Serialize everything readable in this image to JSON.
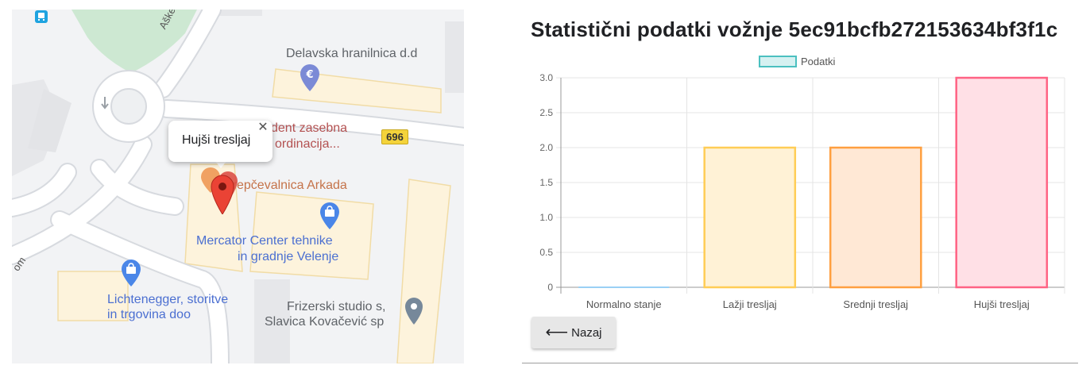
{
  "map": {
    "popup": {
      "text": "Hujši tresljaj",
      "close_glyph": "✕"
    },
    "route_number": "696",
    "road_labels": {
      "askerceva": "Aškerčeva",
      "partial": "om"
    },
    "places": {
      "delavska": "Delavska hranilnica d.d",
      "dent_line1": "dent zasebna",
      "dent_line2": "ordinacija...",
      "krepcevalnica": "Krepčevalnica Arkada",
      "mercator_line1": "Mercator Center tehnike",
      "mercator_line2": "in gradnje Velenje",
      "lichtenegger_line1": "Lichtenegger, storitve",
      "lichtenegger_line2": "in trgovina doo",
      "frizerski_line1": "Frizerski studio s,",
      "frizerski_line2": "Slavica Kovačević sp"
    },
    "icons": [
      "bus-stop-icon",
      "euro-bank-icon",
      "shopping-bag-icon",
      "location-pin-icon",
      "restaurant-icon",
      "red-marker-icon"
    ]
  },
  "chart_title": "Statistični podatki vožnje 5ec91bcfb272153634bf3f1c",
  "chart_data": {
    "type": "bar",
    "title": "Statistični podatki vožnje 5ec91bcfb272153634bf3f1c",
    "categories": [
      "Normalno stanje",
      "Lažji tresljaj",
      "Srednji tresljaj",
      "Hujši tresljaj"
    ],
    "series": [
      {
        "name": "Podatki",
        "values": [
          0,
          2,
          2,
          3
        ]
      }
    ],
    "ylim": [
      0,
      3
    ],
    "yticks": [
      "0",
      "0.5",
      "1.0",
      "1.5",
      "2.0",
      "2.5",
      "3.0"
    ],
    "grid": true,
    "legend": "top-center",
    "colors": {
      "legend_fill": "#d6f1f1",
      "legend_stroke": "#4bc0c0",
      "bar_fills": [
        "#dde9f7",
        "#fff2d6",
        "#ffe8d5",
        "#ffe0e6"
      ],
      "bar_strokes": [
        "#36a2eb",
        "#ffcd56",
        "#ff9f40",
        "#ff6384"
      ]
    }
  },
  "back_button": {
    "arrow": "⟵",
    "label": "Nazaj"
  }
}
